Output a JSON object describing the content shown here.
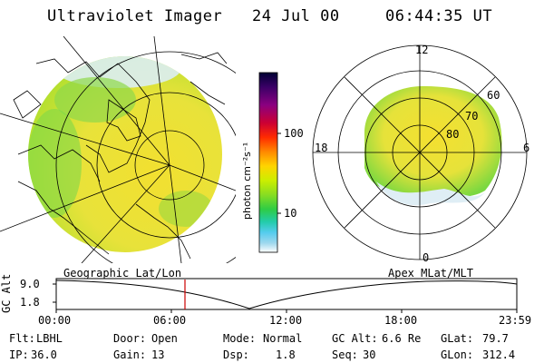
{
  "header": {
    "instrument": "Ultraviolet Imager",
    "date": "24 Jul 00",
    "time": "06:44:35 UT"
  },
  "colorbar": {
    "unit_label": "photon cm⁻²s⁻¹",
    "ticks": [
      "100",
      "10"
    ],
    "colors": [
      "#000033",
      "#3a0066",
      "#8a0080",
      "#cc0033",
      "#ff2b00",
      "#ff8800",
      "#ffd400",
      "#ccee00",
      "#88dd22",
      "#2fcc44",
      "#22ccaa",
      "#55ccee",
      "#a0d8ee",
      "#ffffff"
    ]
  },
  "left_panel": {
    "label": "Geographic Lat/Lon"
  },
  "right_panel": {
    "label": "Apex MLat/MLT",
    "mlt_labels": [
      "12",
      "18",
      "6",
      "0"
    ],
    "mlat_labels": [
      "60",
      "70",
      "80"
    ]
  },
  "timeline": {
    "axis_label": "GC Alt",
    "y_ticks": [
      "9.0",
      "1.8"
    ],
    "x_ticks": [
      "00:00",
      "06:00",
      "12:00",
      "18:00",
      "23:59"
    ]
  },
  "params": {
    "flt_label": "Flt:",
    "flt_value": "LBHL",
    "ip_label": "IP:",
    "ip_value": "36.0",
    "door_label": "Door:",
    "door_value": "Open",
    "gain_label": "Gain:",
    "gain_value": "13",
    "mode_label": "Mode:",
    "mode_value": "Normal",
    "dsp_label": "Dsp:",
    "dsp_value": "1.8",
    "gcalt_label": "GC Alt:",
    "gcalt_value": "6.6 Re",
    "seq_label": "Seq:",
    "seq_value": "30",
    "glat_label": "GLat:",
    "glat_value": "79.7",
    "glon_label": "GLon:",
    "glon_value": "312.4"
  }
}
